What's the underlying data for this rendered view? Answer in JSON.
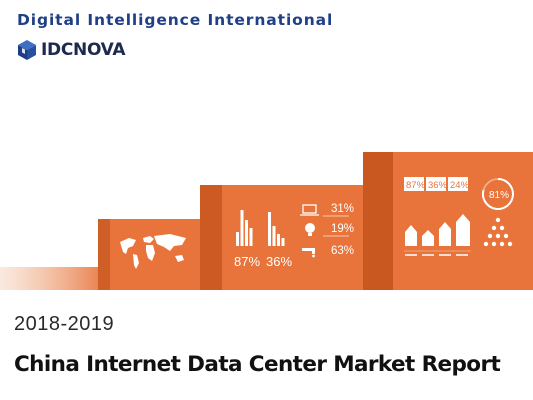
{
  "header": {
    "organization": "Digital Intelligence International",
    "brand": "IDCNOVA"
  },
  "banner": {
    "step2": {
      "stats": [
        "87%",
        "36%"
      ],
      "icon_stats": [
        "31%",
        "19%",
        "63%"
      ]
    },
    "step3": {
      "badges": [
        "87%",
        "36%",
        "24%"
      ],
      "ring_value": "81%"
    }
  },
  "report": {
    "years": "2018-2019",
    "title": "China Internet Data Center Market Report"
  },
  "colors": {
    "accent": "#e8743c",
    "accent_dark": "#cc5a22",
    "brand_blue": "#1f3f86"
  }
}
